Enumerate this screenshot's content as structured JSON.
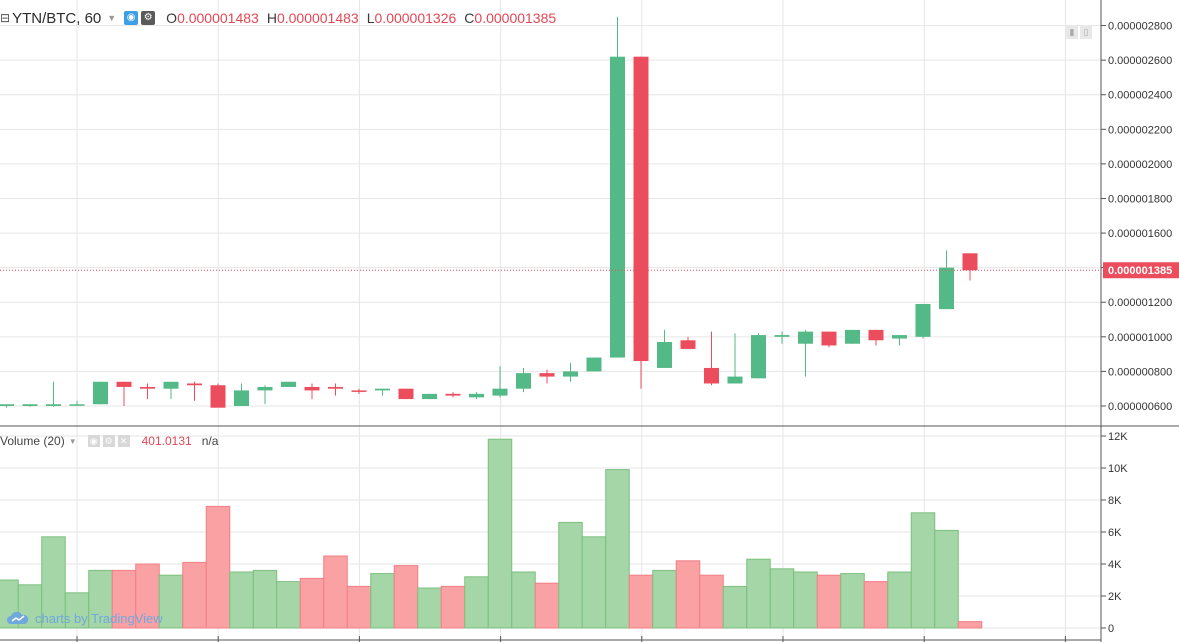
{
  "header": {
    "symbol": "YTN/BTC, 60",
    "o_key": "O",
    "o_val": "0.000001483",
    "h_key": "H",
    "h_val": "0.000001483",
    "l_key": "L",
    "l_val": "0.000001326",
    "c_key": "C",
    "c_val": "0.000001385"
  },
  "volume_header": {
    "label": "Volume (20)",
    "value": "401.0131",
    "na": "n/a"
  },
  "brand": "charts by TradingView",
  "colors": {
    "up": "#53b987",
    "down": "#eb4d5c",
    "vol_up": "#a5d6a7",
    "vol_down": "#faa1a4",
    "grid": "#e6e6e6"
  },
  "chart_data": [
    {
      "type": "candlestick",
      "title": "YTN/BTC, 60",
      "price_ticks": [
        "0.000000600",
        "0.000000800",
        "0.000001000",
        "0.000001200",
        "0.000001400",
        "0.000001600",
        "0.000001800",
        "0.000002000",
        "0.000002200",
        "0.000002400",
        "0.000002600",
        "0.000002800"
      ],
      "ylim": [
        4.9e-07,
        2.89e-06
      ],
      "last_price": "0.000001385",
      "candles": [
        {
          "o": 6e-07,
          "h": 6.05e-07,
          "l": 5.9e-07,
          "c": 6.1e-07
        },
        {
          "o": 6e-07,
          "h": 6.1e-07,
          "l": 5.95e-07,
          "c": 6.1e-07
        },
        {
          "o": 6e-07,
          "h": 7.4e-07,
          "l": 5.95e-07,
          "c": 6.1e-07
        },
        {
          "o": 6.05e-07,
          "h": 6.3e-07,
          "l": 6e-07,
          "c": 6.1e-07
        },
        {
          "o": 6.1e-07,
          "h": 7.4e-07,
          "l": 6.1e-07,
          "c": 7.4e-07
        },
        {
          "o": 7.4e-07,
          "h": 7.4e-07,
          "l": 6e-07,
          "c": 7.1e-07
        },
        {
          "o": 7.1e-07,
          "h": 7.3e-07,
          "l": 6.4e-07,
          "c": 7e-07
        },
        {
          "o": 7e-07,
          "h": 7.4e-07,
          "l": 6.4e-07,
          "c": 7.4e-07
        },
        {
          "o": 7.3e-07,
          "h": 7.4e-07,
          "l": 6.3e-07,
          "c": 7.2e-07
        },
        {
          "o": 7.2e-07,
          "h": 7.3e-07,
          "l": 6e-07,
          "c": 5.9e-07
        },
        {
          "o": 6e-07,
          "h": 7.3e-07,
          "l": 6e-07,
          "c": 6.9e-07
        },
        {
          "o": 6.9e-07,
          "h": 7.2e-07,
          "l": 6.1e-07,
          "c": 7.1e-07
        },
        {
          "o": 7.1e-07,
          "h": 7.4e-07,
          "l": 7.1e-07,
          "c": 7.4e-07
        },
        {
          "o": 7.1e-07,
          "h": 7.3e-07,
          "l": 6.4e-07,
          "c": 6.9e-07
        },
        {
          "o": 7.1e-07,
          "h": 7.3e-07,
          "l": 6.6e-07,
          "c": 7e-07
        },
        {
          "o": 6.9e-07,
          "h": 7e-07,
          "l": 6.7e-07,
          "c": 6.85e-07
        },
        {
          "o": 6.9e-07,
          "h": 7e-07,
          "l": 6.6e-07,
          "c": 7e-07
        },
        {
          "o": 7e-07,
          "h": 7e-07,
          "l": 6.4e-07,
          "c": 6.4e-07
        },
        {
          "o": 6.4e-07,
          "h": 6.7e-07,
          "l": 6.4e-07,
          "c": 6.7e-07
        },
        {
          "o": 6.7e-07,
          "h": 6.8e-07,
          "l": 6.5e-07,
          "c": 6.6e-07
        },
        {
          "o": 6.5e-07,
          "h": 6.8e-07,
          "l": 6.4e-07,
          "c": 6.7e-07
        },
        {
          "o": 6.6e-07,
          "h": 8.3e-07,
          "l": 6.5e-07,
          "c": 7e-07
        },
        {
          "o": 7e-07,
          "h": 8.2e-07,
          "l": 6.8e-07,
          "c": 7.9e-07
        },
        {
          "o": 7.9e-07,
          "h": 8.1e-07,
          "l": 7.3e-07,
          "c": 7.7e-07
        },
        {
          "o": 7.7e-07,
          "h": 8.5e-07,
          "l": 7.4e-07,
          "c": 8e-07
        },
        {
          "o": 8e-07,
          "h": 8.8e-07,
          "l": 8e-07,
          "c": 8.8e-07
        },
        {
          "o": 8.8e-07,
          "h": 2.85e-06,
          "l": 8.8e-07,
          "c": 2.62e-06
        },
        {
          "o": 2.62e-06,
          "h": 2.62e-06,
          "l": 7e-07,
          "c": 8.6e-07
        },
        {
          "o": 8.2e-07,
          "h": 1.04e-06,
          "l": 8.2e-07,
          "c": 9.7e-07
        },
        {
          "o": 9.8e-07,
          "h": 1e-06,
          "l": 9.3e-07,
          "c": 9.3e-07
        },
        {
          "o": 8.2e-07,
          "h": 1.03e-06,
          "l": 7.2e-07,
          "c": 7.3e-07
        },
        {
          "o": 7.3e-07,
          "h": 1.02e-06,
          "l": 7.3e-07,
          "c": 7.7e-07
        },
        {
          "o": 7.6e-07,
          "h": 1.02e-06,
          "l": 7.6e-07,
          "c": 1.01e-06
        },
        {
          "o": 1e-06,
          "h": 1.03e-06,
          "l": 9.6e-07,
          "c": 1.01e-06
        },
        {
          "o": 9.6e-07,
          "h": 1.04e-06,
          "l": 7.7e-07,
          "c": 1.03e-06
        },
        {
          "o": 1.03e-06,
          "h": 1.03e-06,
          "l": 9.4e-07,
          "c": 9.5e-07
        },
        {
          "o": 9.6e-07,
          "h": 1.04e-06,
          "l": 9.6e-07,
          "c": 1.04e-06
        },
        {
          "o": 1.04e-06,
          "h": 1.04e-06,
          "l": 9.5e-07,
          "c": 9.8e-07
        },
        {
          "o": 9.9e-07,
          "h": 1.01e-06,
          "l": 9.5e-07,
          "c": 1.01e-06
        },
        {
          "o": 1e-06,
          "h": 1.19e-06,
          "l": 9.9e-07,
          "c": 1.19e-06
        },
        {
          "o": 1.16e-06,
          "h": 1.5e-06,
          "l": 1.16e-06,
          "c": 1.4e-06
        },
        {
          "o": 1.483e-06,
          "h": 1.483e-06,
          "l": 1.326e-06,
          "c": 1.385e-06
        }
      ]
    },
    {
      "type": "bar",
      "title": "Volume (20)",
      "y_ticks": [
        "0",
        "2K",
        "4K",
        "6K",
        "8K",
        "10K",
        "12K"
      ],
      "ylim": [
        0,
        12000
      ],
      "values": [
        3000,
        2700,
        5700,
        2200,
        3600,
        3600,
        4000,
        3300,
        4100,
        7600,
        3500,
        3600,
        2900,
        3100,
        4500,
        2600,
        3400,
        3900,
        2500,
        2600,
        3200,
        11800,
        3500,
        2800,
        6600,
        5700,
        9900,
        3300,
        3600,
        4200,
        3300,
        2600,
        4300,
        3700,
        3500,
        3300,
        3400,
        2900,
        3500,
        7200,
        6100,
        400
      ],
      "directions": [
        "up",
        "up",
        "up",
        "up",
        "up",
        "down",
        "down",
        "up",
        "down",
        "down",
        "up",
        "up",
        "up",
        "down",
        "down",
        "down",
        "up",
        "down",
        "up",
        "down",
        "up",
        "up",
        "up",
        "down",
        "up",
        "up",
        "up",
        "down",
        "up",
        "down",
        "down",
        "up",
        "up",
        "up",
        "up",
        "down",
        "up",
        "down",
        "up",
        "up",
        "up",
        "down"
      ]
    }
  ]
}
